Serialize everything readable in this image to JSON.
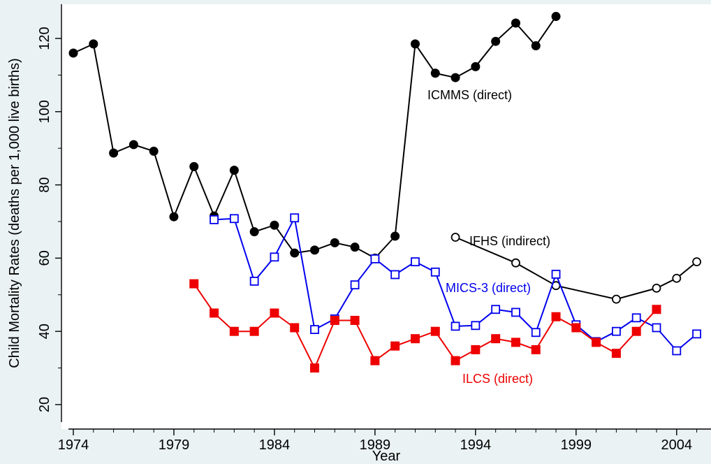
{
  "chart_data": {
    "type": "line",
    "xlabel": "Year",
    "ylabel": "Child Mortality Rates (deaths per 1,000 live births)",
    "xlim": [
      1973.8,
      2005.7
    ],
    "ylim": [
      17,
      130
    ],
    "x_ticks": [
      1974,
      1979,
      1984,
      1989,
      1994,
      1999,
      2004
    ],
    "y_ticks": [
      20,
      40,
      60,
      80,
      100,
      120
    ],
    "grid": false,
    "legend": "none (series labelled inline)",
    "series": [
      {
        "name": "ICMMS (direct)",
        "color": "#000000",
        "marker": "filled-circle",
        "points": [
          [
            1974,
            116
          ],
          [
            1975,
            118.5
          ],
          [
            1976,
            88.7
          ],
          [
            1977,
            91
          ],
          [
            1978,
            89.2
          ],
          [
            1979,
            71.3
          ],
          [
            1980,
            85
          ],
          [
            1981,
            71.5
          ],
          [
            1982,
            84
          ],
          [
            1983,
            67.2
          ],
          [
            1984,
            69
          ],
          [
            1985,
            61.4
          ],
          [
            1986,
            62.2
          ],
          [
            1987,
            64.2
          ],
          [
            1988,
            63
          ],
          [
            1989,
            60
          ],
          [
            1990,
            66
          ],
          [
            1991,
            118.5
          ],
          [
            1992,
            110.5
          ],
          [
            1993,
            109.3
          ],
          [
            1994,
            112.3
          ],
          [
            1995,
            119.2
          ],
          [
            1996,
            124.2
          ],
          [
            1997,
            118
          ],
          [
            1998,
            126
          ]
        ]
      },
      {
        "name": "IFHS (indirect)",
        "color": "#000000",
        "marker": "hollow-circle",
        "points": [
          [
            1993,
            65.7
          ],
          [
            1996,
            58.7
          ],
          [
            1998,
            52.5
          ],
          [
            2001,
            48.8
          ],
          [
            2003,
            51.8
          ],
          [
            2004,
            54.5
          ],
          [
            2005,
            59
          ]
        ]
      },
      {
        "name": "MICS-3 (direct)",
        "color": "#0000ee",
        "marker": "hollow-square",
        "points": [
          [
            1981,
            70.5
          ],
          [
            1982,
            70.8
          ],
          [
            1983,
            53.7
          ],
          [
            1984,
            60.3
          ],
          [
            1985,
            71
          ],
          [
            1986,
            40.5
          ],
          [
            1987,
            43.4
          ],
          [
            1988,
            52.7
          ],
          [
            1989,
            59.8
          ],
          [
            1990,
            55.5
          ],
          [
            1991,
            59
          ],
          [
            1992,
            56.2
          ],
          [
            1993,
            41.4
          ],
          [
            1994,
            41.6
          ],
          [
            1995,
            46
          ],
          [
            1996,
            45.2
          ],
          [
            1997,
            39.7
          ],
          [
            1998,
            55.6
          ],
          [
            1999,
            41.8
          ],
          [
            2000,
            37.2
          ],
          [
            2001,
            40
          ],
          [
            2002,
            43.7
          ],
          [
            2003,
            41
          ],
          [
            2004,
            34.7
          ],
          [
            2005,
            39.3
          ]
        ]
      },
      {
        "name": "ILCS (direct)",
        "color": "#ee0000",
        "marker": "filled-square",
        "points": [
          [
            1980,
            53
          ],
          [
            1981,
            45
          ],
          [
            1982,
            40
          ],
          [
            1983,
            40
          ],
          [
            1984,
            45
          ],
          [
            1985,
            41
          ],
          [
            1986,
            30
          ],
          [
            1987,
            43
          ],
          [
            1988,
            43
          ],
          [
            1989,
            32
          ],
          [
            1990,
            36
          ],
          [
            1991,
            38
          ],
          [
            1992,
            40
          ],
          [
            1993,
            32
          ],
          [
            1994,
            35
          ],
          [
            1995,
            38
          ],
          [
            1996,
            37
          ],
          [
            1997,
            35
          ],
          [
            1998,
            44
          ],
          [
            1999,
            41
          ],
          [
            2000,
            37
          ],
          [
            2001,
            34
          ],
          [
            2002,
            40
          ],
          [
            2003,
            46
          ]
        ]
      }
    ]
  }
}
